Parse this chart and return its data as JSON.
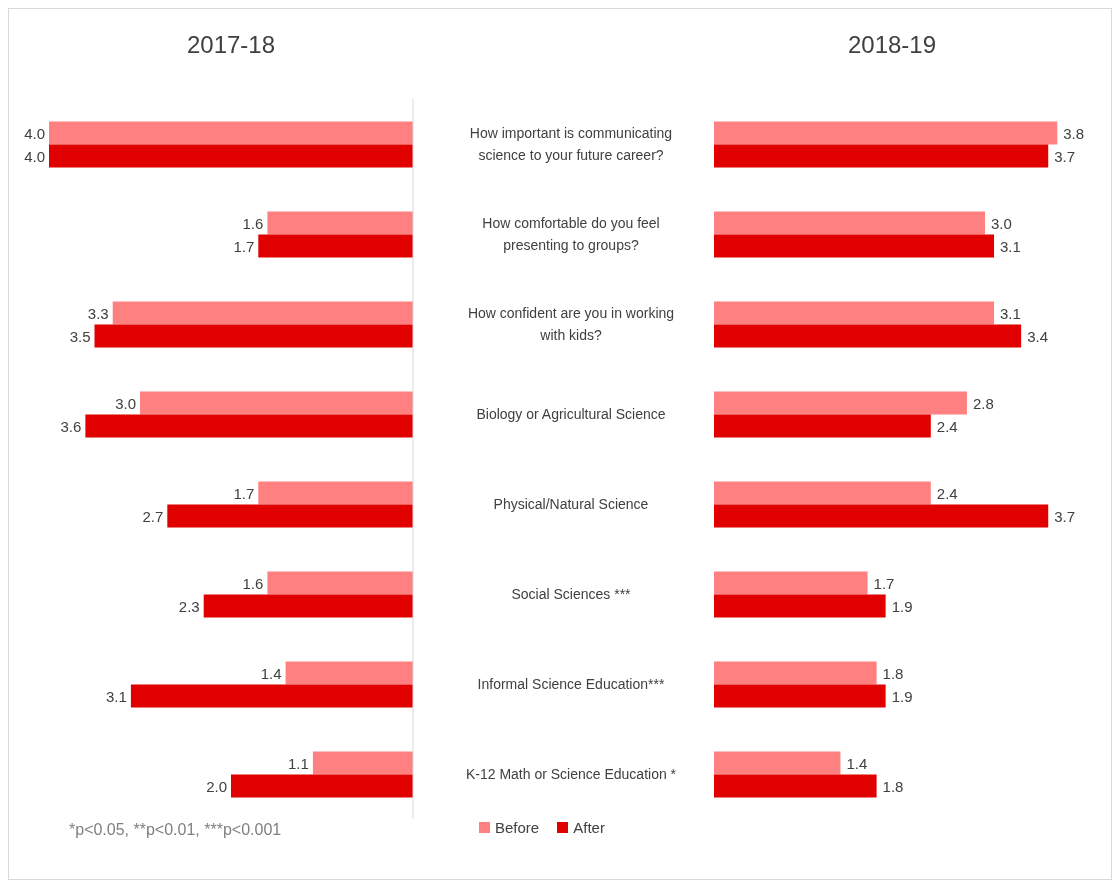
{
  "chart_data": [
    {
      "type": "bar",
      "orientation": "horizontal",
      "title": "2017-18",
      "categories": [
        "How important is communicating science to your future career?",
        "How comfortable do you feel presenting to groups?",
        "How confident are you in working with kids?",
        "Biology or Agricultural Science",
        "Physical/Natural Science",
        "Social Sciences ***",
        "Informal Science Education***",
        "K-12 Math or Science Education *"
      ],
      "xlim": [
        4.0,
        0
      ],
      "tick_labels": "y",
      "legend": "bottom",
      "series": [
        {
          "name": "Before",
          "color": "#ff8080",
          "values": [
            4.0,
            1.6,
            3.3,
            3.0,
            1.7,
            1.6,
            1.4,
            1.1
          ],
          "value_labels": [
            "4.0",
            "1.6",
            "3.3",
            "3.0",
            "1.7",
            "1.6",
            "1.4",
            "1.1"
          ]
        },
        {
          "name": "After",
          "color": "#e00000",
          "values": [
            4.0,
            1.7,
            3.5,
            3.6,
            2.7,
            2.3,
            3.1,
            2.0
          ],
          "value_labels": [
            "4.0",
            "1.7",
            "3.5",
            "3.6",
            "2.7",
            "2.3",
            "3.1",
            "2.0"
          ]
        }
      ],
      "annotations": [
        "*p<0.05, **p<0.01, ***p<0.001"
      ]
    },
    {
      "type": "bar",
      "orientation": "horizontal",
      "title": "2018-19",
      "categories": [
        null,
        null,
        null,
        null,
        null,
        null,
        null,
        null
      ],
      "tick_labels": false,
      "series": [
        {
          "color": "#ff8080",
          "values": [
            3.8,
            3.0,
            3.1,
            2.8,
            2.4,
            1.7,
            1.8,
            1.4
          ],
          "value_labels": [
            "3.8",
            "3.0",
            "3.1",
            "2.8",
            "2.4",
            "1.7",
            "1.8",
            "1.4"
          ]
        },
        {
          "color": "#e00000",
          "values": [
            3.7,
            3.1,
            3.4,
            2.4,
            3.7,
            1.9,
            1.9,
            1.8
          ],
          "value_labels": [
            "3.7",
            "3.1",
            "3.4",
            "2.4",
            "3.7",
            "1.9",
            "1.9",
            "1.8"
          ]
        }
      ]
    }
  ]
}
